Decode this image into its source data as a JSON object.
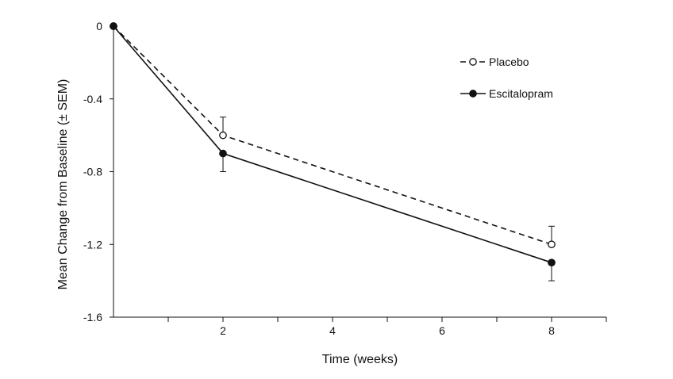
{
  "chart_data": {
    "type": "line",
    "title": "",
    "xlabel": "Time (weeks)",
    "ylabel": "Mean Change from Baseline (± SEM)",
    "xlim": [
      0,
      9
    ],
    "ylim": [
      -1.6,
      0
    ],
    "xticks": [
      2,
      4,
      6,
      8
    ],
    "xtick_labels": [
      "2",
      "4",
      "6",
      "8"
    ],
    "yticks": [
      0,
      -0.4,
      -0.8,
      -1.2,
      -1.6
    ],
    "ytick_labels": [
      "0",
      "-0.4",
      "-0.8",
      "-1.2",
      "-1.6"
    ],
    "grid": false,
    "legend_position": "top-right",
    "series": [
      {
        "name": "Placebo",
        "style": "dashed",
        "marker": "open-circle",
        "x": [
          0,
          2,
          8
        ],
        "y": [
          0,
          -0.6,
          -1.2
        ],
        "sem": [
          0,
          0.1,
          0.1
        ]
      },
      {
        "name": "Escitalopram",
        "style": "solid",
        "marker": "filled-circle",
        "x": [
          0,
          2,
          8
        ],
        "y": [
          0,
          -0.7,
          -1.3
        ],
        "sem": [
          0,
          0.1,
          0.1
        ]
      }
    ]
  }
}
